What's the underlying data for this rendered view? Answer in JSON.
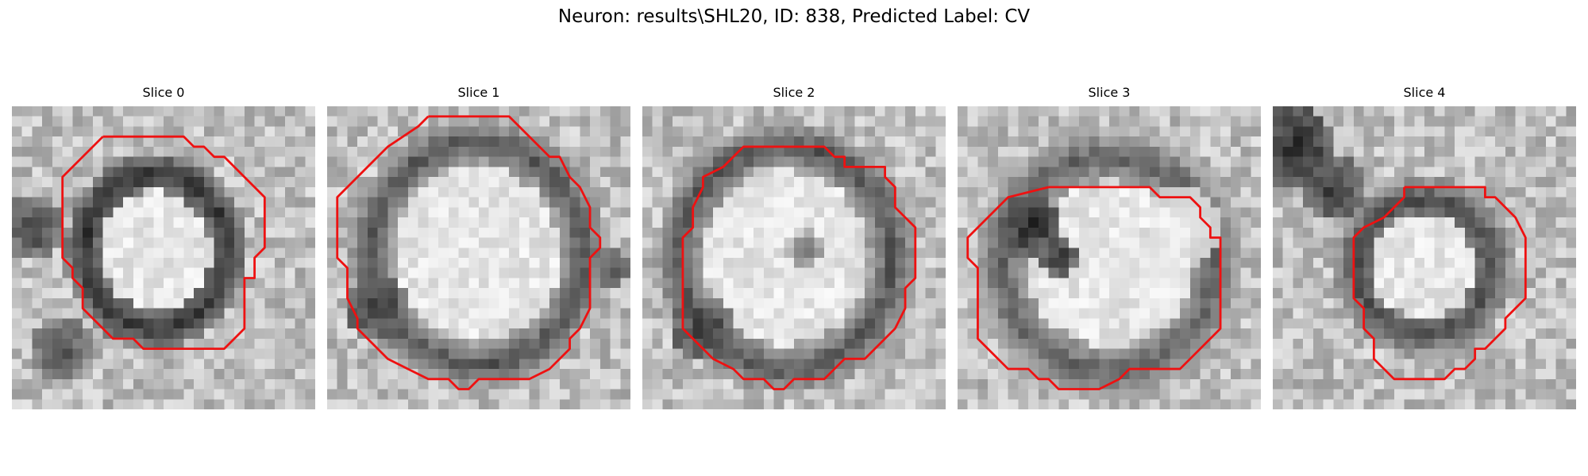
{
  "figure": {
    "title": "Neuron: results\\SHL20, ID: 838, Predicted Label: CV"
  },
  "panels": [
    {
      "title": "Slice 0"
    },
    {
      "title": "Slice 1"
    },
    {
      "title": "Slice 2"
    },
    {
      "title": "Slice 3"
    },
    {
      "title": "Slice 4"
    }
  ],
  "colors": {
    "contour": "#ee1111",
    "background": "#ffffff"
  }
}
